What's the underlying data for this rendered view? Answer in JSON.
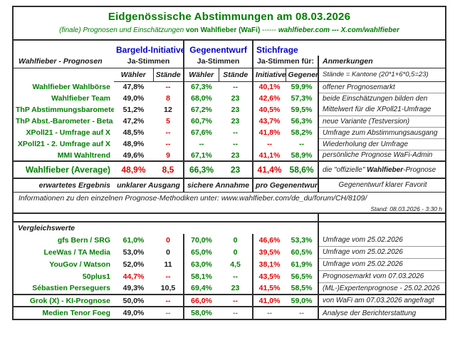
{
  "colors": {
    "green": "#007d00",
    "red": "#e00000",
    "blue": "#0202cc",
    "black": "#1a1a1a",
    "gray": "#777777",
    "border": "#2e2e2e"
  },
  "header": {
    "title": "Eidgenössische Abstimmungen am 08.03.2026",
    "subtitle_italic": "(finale) Prognosen und Einschätzungen",
    "subtitle_bold": "von Wahlfieber (WaFi)",
    "subtitle_sep": "------",
    "subtitle_links": "wahlfieber.com --- X.com/wahlfieber"
  },
  "table_head": {
    "left_header": "Wahlfieber - Prognosen",
    "group1": "Bargeld-Initiative",
    "group1_sub": "Ja-Stimmen",
    "group2": "Gegenentwurf",
    "group2_sub": "Ja-Stimmen",
    "group3": "Stichfrage",
    "group3_sub": "Ja-Stimmen für:",
    "anmerkungen": "Anmerkungen",
    "subcols": [
      "Wähler",
      "Stände",
      "Wähler",
      "Stände",
      "Initiative",
      "Gegenentw"
    ],
    "staende_note": "Stände = Kantone (20*1+6*0,5=23)"
  },
  "prognosen": {
    "rows": [
      {
        "label": "Wahlfieber Wahlbörse",
        "cells": [
          {
            "t": "47,8%",
            "c": "black"
          },
          {
            "t": "--",
            "c": "red"
          },
          {
            "t": "67,3%",
            "c": "green"
          },
          {
            "t": "--",
            "c": "green"
          },
          {
            "t": "40,1%",
            "c": "red"
          },
          {
            "t": "59,9%",
            "c": "green"
          }
        ],
        "note": "offener Prognosemarkt",
        "note_u": true
      },
      {
        "label": "Wahlfieber Team",
        "cells": [
          {
            "t": "49,0%",
            "c": "black"
          },
          {
            "t": "8",
            "c": "red"
          },
          {
            "t": "68,0%",
            "c": "green"
          },
          {
            "t": "23",
            "c": "green"
          },
          {
            "t": "42,6%",
            "c": "red"
          },
          {
            "t": "57,3%",
            "c": "green"
          }
        ],
        "note": "beide Einschätzungen bilden den",
        "note_u": false
      },
      {
        "label": "ThP Abstimmungsbarometer",
        "cells": [
          {
            "t": "51,2%",
            "c": "black"
          },
          {
            "t": "12",
            "c": "black"
          },
          {
            "t": "67,2%",
            "c": "green"
          },
          {
            "t": "23",
            "c": "green"
          },
          {
            "t": "40,5%",
            "c": "red"
          },
          {
            "t": "59,5%",
            "c": "green"
          }
        ],
        "note": "Mittelwert für die XPoll21-Umfrage",
        "note_u": true
      },
      {
        "label": "ThP Abst.-Barometer - Beta",
        "cells": [
          {
            "t": "47,2%",
            "c": "black"
          },
          {
            "t": "5",
            "c": "red"
          },
          {
            "t": "60,7%",
            "c": "green"
          },
          {
            "t": "23",
            "c": "green"
          },
          {
            "t": "43,7%",
            "c": "red"
          },
          {
            "t": "56,3%",
            "c": "green"
          }
        ],
        "note": "neue Variante (Testversion)",
        "note_u": true
      },
      {
        "label": "XPoll21 - Umfrage auf X",
        "cells": [
          {
            "t": "48,5%",
            "c": "black"
          },
          {
            "t": "--",
            "c": "red"
          },
          {
            "t": "67,6%",
            "c": "green"
          },
          {
            "t": "--",
            "c": "green"
          },
          {
            "t": "41,8%",
            "c": "red"
          },
          {
            "t": "58,2%",
            "c": "green"
          }
        ],
        "note": "Umfrage zum Abstimmungsausgang",
        "note_u": true
      },
      {
        "label": "XPoll21 - 2. Umfrage auf X",
        "cells": [
          {
            "t": "48,9%",
            "c": "black"
          },
          {
            "t": "--",
            "c": "red"
          },
          {
            "t": "--",
            "c": "green"
          },
          {
            "t": "--",
            "c": "green"
          },
          {
            "t": "--",
            "c": "red"
          },
          {
            "t": "--",
            "c": "green"
          }
        ],
        "note": "Wiederholung der Umfrage",
        "note_u": true
      },
      {
        "label": "MMI Wahltrend",
        "cells": [
          {
            "t": "49,6%",
            "c": "black"
          },
          {
            "t": "9",
            "c": "red"
          },
          {
            "t": "67,1%",
            "c": "green"
          },
          {
            "t": "23",
            "c": "green"
          },
          {
            "t": "41,1%",
            "c": "red"
          },
          {
            "t": "58,9%",
            "c": "green"
          }
        ],
        "note": "persönliche Prognose WaFi-Admin",
        "note_u": false
      }
    ]
  },
  "average": {
    "label": "Wahlfieber (Average)",
    "cells": [
      {
        "t": "48,9%",
        "c": "red"
      },
      {
        "t": "8,5",
        "c": "red"
      },
      {
        "t": "66,3%",
        "c": "green"
      },
      {
        "t": "23",
        "c": "green"
      },
      {
        "t": "41,4%",
        "c": "red"
      },
      {
        "t": "58,6%",
        "c": "green"
      }
    ],
    "note_pre": "die \"offizielle\" ",
    "note_bold": "Wahlfieber",
    "note_post": "-Prognose"
  },
  "expected": {
    "label": "erwartetes Ergebnis",
    "span1": "unklarer Ausgang",
    "span2": "sichere Annahme",
    "span3": "pro Gegenentwurf",
    "note": "Gegenentwurf klarer Favorit"
  },
  "info_text": "Informationen zu den einzelnen Prognose-Methodiken unter: www.wahlfieber.com/de_du/forum/CH/8109/",
  "stand_text": "Stand: 08.03.2026 - 3:30 h",
  "comparison": {
    "title": "Vergleichswerte",
    "rows": [
      {
        "label": "gfs Bern / SRG",
        "cells": [
          {
            "t": "61,0%",
            "c": "green"
          },
          {
            "t": "0",
            "c": "red"
          },
          {
            "t": "70,0%",
            "c": "green"
          },
          {
            "t": "0",
            "c": "green"
          },
          {
            "t": "46,6%",
            "c": "red"
          },
          {
            "t": "53,3%",
            "c": "green"
          }
        ],
        "note": "Umfrage vom 25.02.2026",
        "note_u": true,
        "sep_b": false
      },
      {
        "label": "LeeWas / TA Media",
        "cells": [
          {
            "t": "53,0%",
            "c": "black"
          },
          {
            "t": "0",
            "c": "black"
          },
          {
            "t": "65,0%",
            "c": "green"
          },
          {
            "t": "0",
            "c": "green"
          },
          {
            "t": "39,5%",
            "c": "red"
          },
          {
            "t": "60,5%",
            "c": "green"
          }
        ],
        "note": "Umfrage vom 25.02.2026",
        "note_u": true,
        "sep_b": false
      },
      {
        "label": "YouGov / Watson",
        "cells": [
          {
            "t": "52,0%",
            "c": "black"
          },
          {
            "t": "11",
            "c": "black"
          },
          {
            "t": "63,0%",
            "c": "green"
          },
          {
            "t": "4,5",
            "c": "green"
          },
          {
            "t": "38,1%",
            "c": "red"
          },
          {
            "t": "61,9%",
            "c": "green"
          }
        ],
        "note": "Umfrage vom 25.02.2026",
        "note_u": true,
        "sep_b": false
      },
      {
        "label": "50plus1",
        "cells": [
          {
            "t": "44,7%",
            "c": "red"
          },
          {
            "t": "--",
            "c": "red"
          },
          {
            "t": "58,1%",
            "c": "green"
          },
          {
            "t": "--",
            "c": "green"
          },
          {
            "t": "43,5%",
            "c": "red"
          },
          {
            "t": "56,5%",
            "c": "green"
          }
        ],
        "note": "Prognosemarkt vom 07.03.2026",
        "note_u": true,
        "sep_b": false
      },
      {
        "label": "Sébastien Perseguers",
        "cells": [
          {
            "t": "49,3%",
            "c": "black"
          },
          {
            "t": "10,5",
            "c": "black"
          },
          {
            "t": "69,4%",
            "c": "green"
          },
          {
            "t": "23",
            "c": "green"
          },
          {
            "t": "41,5%",
            "c": "red"
          },
          {
            "t": "58,5%",
            "c": "green"
          }
        ],
        "note": "(ML-)Expertenprognose - 25.02.2026",
        "note_u": false,
        "sep_b": true
      },
      {
        "label": "Grok (X) - KI-Prognose",
        "cells": [
          {
            "t": "50,0%",
            "c": "black"
          },
          {
            "t": "--",
            "c": "red"
          },
          {
            "t": "66,0%",
            "c": "red"
          },
          {
            "t": "--",
            "c": "red"
          },
          {
            "t": "41,0%",
            "c": "red"
          },
          {
            "t": "59,0%",
            "c": "green"
          }
        ],
        "note": "von WaFi am 07.03.2026 angefragt",
        "note_u": false,
        "sep_b": true
      },
      {
        "label": "Medien Tenor Foeg",
        "cells": [
          {
            "t": "49,0%",
            "c": "black"
          },
          {
            "t": "--",
            "c": "gray"
          },
          {
            "t": "58,0%",
            "c": "green"
          },
          {
            "t": "--",
            "c": "gray"
          },
          {
            "t": "--",
            "c": "gray"
          },
          {
            "t": "--",
            "c": "gray"
          }
        ],
        "note": "Analyse der Berichterstattung",
        "note_u": false,
        "sep_b": false
      }
    ]
  }
}
